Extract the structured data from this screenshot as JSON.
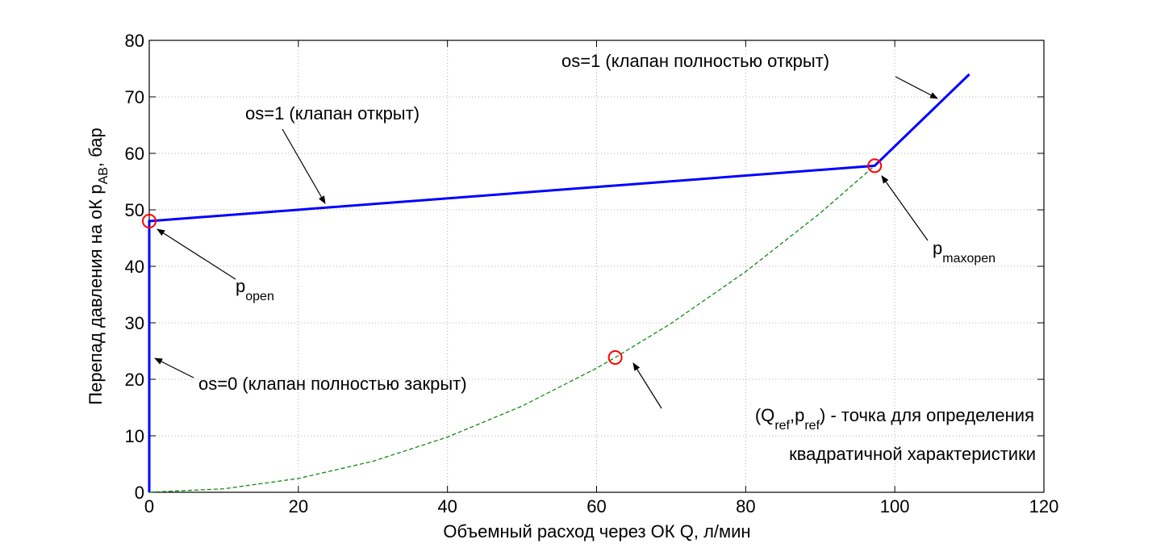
{
  "chart_data": {
    "type": "line",
    "title": "",
    "xlabel": "Объемный расход через ОК Q, л/мин",
    "ylabel": {
      "main": "Перепад давления на оК p",
      "sub": "AB",
      "tail": ", бар"
    },
    "xlim": [
      0,
      120
    ],
    "ylim": [
      0,
      80
    ],
    "x_ticks": [
      0,
      20,
      40,
      60,
      80,
      100,
      120
    ],
    "y_ticks": [
      0,
      10,
      20,
      30,
      40,
      50,
      60,
      70,
      80
    ],
    "grid": true,
    "colors": {
      "valve_line": "#0000ff",
      "quadratic": "#008000",
      "marker": "#ff0000",
      "grid": "#b0b0b0"
    },
    "series": [
      {
        "style": "solid",
        "x": [
          0,
          0,
          97.3,
          110
        ],
        "y": [
          0,
          48,
          57.8,
          74
        ]
      },
      {
        "style": "dashed",
        "x": [
          0,
          10,
          20,
          30,
          40,
          50,
          60,
          62.5,
          70,
          80,
          90,
          97.3
        ],
        "y": [
          0,
          0.61,
          2.44,
          5.49,
          9.77,
          15.26,
          21.97,
          23.85,
          29.9,
          39.06,
          49.43,
          57.8
        ]
      }
    ],
    "markers": [
      {
        "name": "p_open",
        "x": 0,
        "y": 48
      },
      {
        "name": "p_maxopen",
        "x": 97.3,
        "y": 57.8
      },
      {
        "name": "q_ref",
        "x": 62.5,
        "y": 23.85
      }
    ],
    "annotations": {
      "os1_full_open": "os=1 (клапан полностью открыт)",
      "os1_open": "os=1 (клапан открыт)",
      "p_open": {
        "main": "p",
        "sub": "open"
      },
      "p_maxopen": {
        "main": "p",
        "sub": "maxopen"
      },
      "os0_closed": "os=0 (клапан полностью закрыт)",
      "ref_point": {
        "open": "(Q",
        "sub1": "ref",
        "mid": ",p",
        "sub2": "ref",
        "close": ") - точка для определения"
      },
      "ref_point_line2": "квадратичной характеристики"
    }
  }
}
